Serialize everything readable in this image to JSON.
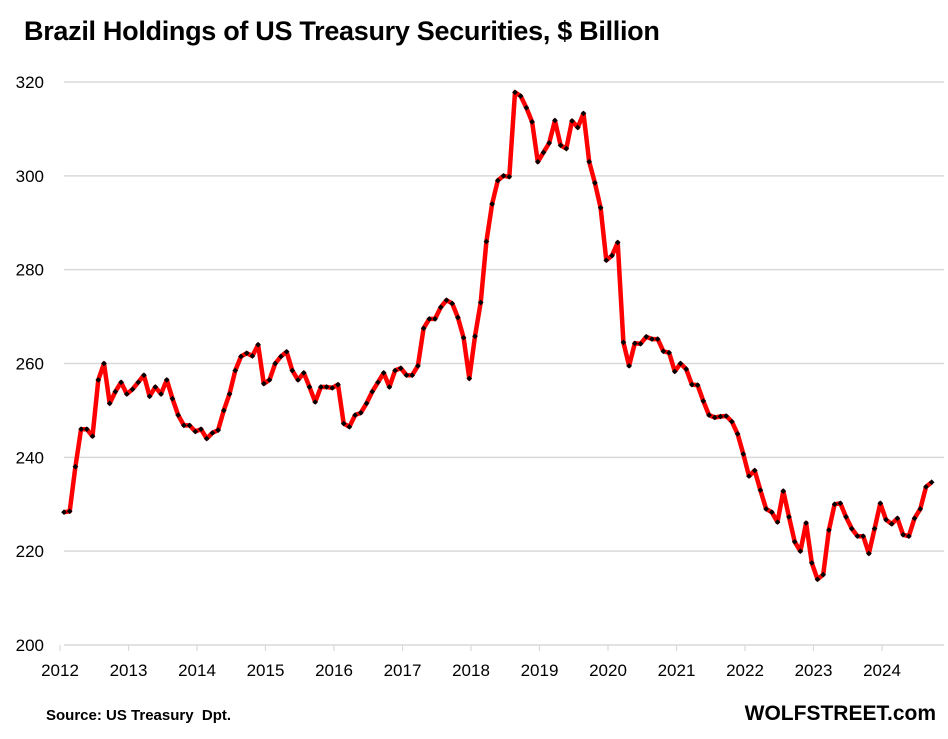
{
  "chart_data": {
    "type": "line",
    "title": "Brazil Holdings of US Treasury Securities, $ Billion",
    "xlabel": "",
    "ylabel": "",
    "ylim": [
      200,
      320
    ],
    "yticks": [
      200,
      220,
      240,
      260,
      280,
      300,
      320
    ],
    "xtick_labels": [
      "2012",
      "2013",
      "2014",
      "2015",
      "2016",
      "2017",
      "2018",
      "2019",
      "2020",
      "2021",
      "2022",
      "2023",
      "2024"
    ],
    "x_start": "2012-01",
    "frequency": "monthly",
    "grid": true,
    "legend": "none",
    "colors": {
      "line": "#ff0000",
      "marker": "#000000",
      "grid": "#d9d9d9"
    },
    "series": [
      {
        "name": "Brazil Holdings",
        "values": [
          228.3,
          228.5,
          238,
          246,
          246,
          244.5,
          256.5,
          260,
          251.5,
          254,
          256,
          253.5,
          254.5,
          256,
          257.5,
          253,
          255,
          253.5,
          256.5,
          252.5,
          249,
          246.8,
          246.8,
          245.5,
          246,
          244,
          245.2,
          245.8,
          250,
          253.5,
          258.5,
          261.5,
          262.2,
          261.6,
          264,
          255.7,
          256.5,
          260,
          261.5,
          262.5,
          258.5,
          256.5,
          258,
          255,
          251.8,
          255,
          255,
          254.8,
          255.5,
          247.2,
          246.5,
          249,
          249.5,
          251.5,
          254,
          256,
          258,
          255,
          258.5,
          259,
          257.5,
          257.5,
          259.5,
          267.5,
          269.5,
          269.5,
          272,
          273.5,
          272.8,
          269.8,
          265.5,
          256.8,
          265.8,
          273,
          286,
          294,
          299,
          300,
          299.8,
          317.8,
          317,
          314.5,
          311.5,
          303,
          305,
          307,
          311.8,
          306.5,
          305.8,
          311.7,
          310.3,
          313.3,
          303,
          298.5,
          293.2,
          282,
          283,
          285.8,
          264.5,
          259.5,
          264.3,
          264.2,
          265.7,
          265.2,
          265.2,
          262.6,
          262.3,
          258.3,
          260,
          258.8,
          255.5,
          255.4,
          252,
          249,
          248.5,
          248.7,
          248.8,
          247.6,
          245,
          240.7,
          236,
          237.2,
          233,
          229,
          228.3,
          226.2,
          232.8,
          227.3,
          222,
          220,
          226,
          217.5,
          214,
          215,
          224.5,
          230,
          230.2,
          227.3,
          224.8,
          223.2,
          223.2,
          219.5,
          224.8,
          230.2,
          226.7,
          225.8,
          227,
          223.5,
          223.2,
          227,
          229,
          233.7,
          234.7
        ]
      }
    ]
  },
  "source": "Source: US Treasury  Dpt.",
  "brand": "WOLFSTREET.com"
}
